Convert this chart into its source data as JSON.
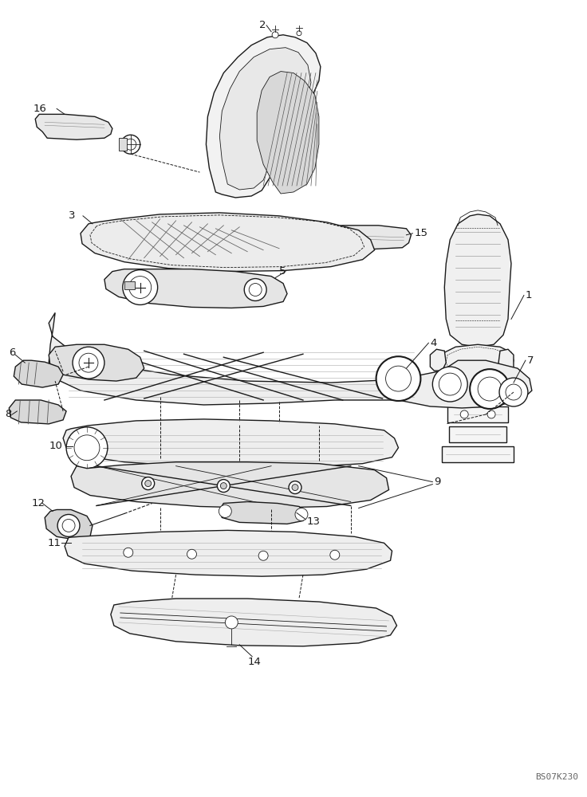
{
  "background_color": "#ffffff",
  "line_color": "#1a1a1a",
  "watermark": "BS07K230",
  "watermark_color": "#666666",
  "label_fontsize": 9.5,
  "watermark_fontsize": 8,
  "fig_width": 7.36,
  "fig_height": 10.0,
  "dpi": 100
}
